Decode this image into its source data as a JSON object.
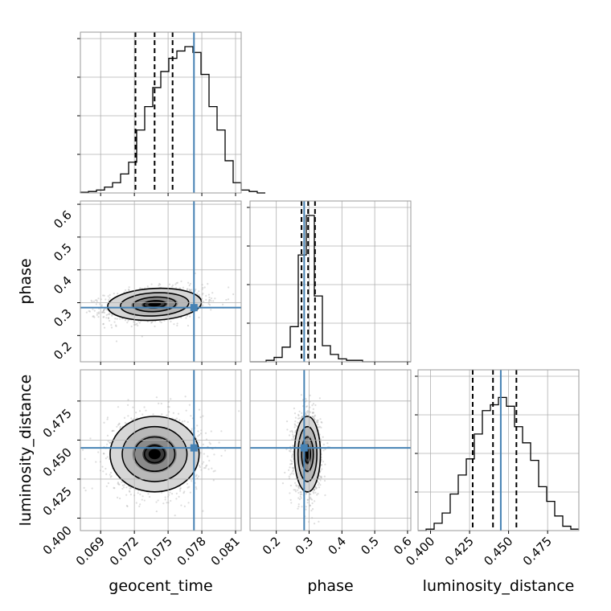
{
  "chart_data": {
    "type": "corner",
    "parameters": [
      "geocent_time",
      "phase",
      "luminosity_distance"
    ],
    "axis_labels": {
      "geocent_time": "geocent_time",
      "phase": "phase",
      "luminosity_distance": "luminosity_distance"
    },
    "ranges": {
      "geocent_time": [
        0.0672,
        0.0815
      ],
      "phase": [
        0.12,
        0.61
      ],
      "luminosity_distance": [
        0.392,
        0.495
      ]
    },
    "ticks": {
      "geocent_time": [
        0.069,
        0.072,
        0.075,
        0.078,
        0.081
      ],
      "phase": [
        0.2,
        0.3,
        0.4,
        0.5,
        0.6
      ],
      "phase_y": [
        0.2,
        0.3,
        0.4,
        0.5,
        0.6
      ],
      "luminosity_distance": [
        0.4,
        0.425,
        0.45,
        0.475
      ]
    },
    "tick_labels": {
      "geocent_time": [
        "0.069",
        "0.072",
        "0.075",
        "0.078",
        "0.081"
      ],
      "phase": [
        "0.2",
        "0.3",
        "0.4",
        "0.5",
        "0.6"
      ],
      "phase_y": [
        "0.2",
        "0.3",
        "0.4",
        "0.5",
        "0.6"
      ],
      "luminosity_distance_x": [
        "0.400",
        "0.425",
        "0.450",
        "0.475"
      ],
      "luminosity_distance_y": [
        "0.400",
        "0.425",
        "0.450",
        "0.475"
      ]
    },
    "truths": {
      "geocent_time": 0.0773,
      "phase": 0.285,
      "luminosity_distance": 0.445
    },
    "quantiles": {
      "geocent_time": [
        0.0721,
        0.0738,
        0.0754
      ],
      "phase": [
        0.277,
        0.297,
        0.318
      ],
      "luminosity_distance": [
        0.427,
        0.44,
        0.455
      ]
    },
    "histograms": {
      "geocent_time": {
        "bin_start": 0.0672,
        "bin_width": 0.000715,
        "counts": [
          0.005,
          0.01,
          0.02,
          0.04,
          0.07,
          0.13,
          0.21,
          0.43,
          0.59,
          0.72,
          0.83,
          0.92,
          0.97,
          1.0,
          0.96,
          0.81,
          0.59,
          0.43,
          0.22,
          0.07,
          0.02,
          0.01,
          0.0
        ]
      },
      "phase": {
        "bin_start": 0.12,
        "bin_width": 0.0245,
        "counts": [
          0.0,
          0.0,
          0.01,
          0.03,
          0.1,
          0.24,
          0.73,
          1.0,
          0.45,
          0.11,
          0.05,
          0.02,
          0.01,
          0.01,
          0.0,
          0.0,
          0.0,
          0.0,
          0.0,
          0.0
        ]
      },
      "luminosity_distance": {
        "bin_start": 0.392,
        "bin_width": 0.00515,
        "counts": [
          0.0,
          0.01,
          0.05,
          0.12,
          0.25,
          0.38,
          0.49,
          0.66,
          0.82,
          0.86,
          0.91,
          0.85,
          0.71,
          0.6,
          0.48,
          0.3,
          0.2,
          0.1,
          0.03,
          0.01
        ]
      }
    },
    "posterior_2d": {
      "geocent_time_vs_phase": {
        "center": [
          0.0738,
          0.295
        ],
        "sigma": [
          0.0019,
          0.022
        ],
        "correlation": 0.25
      },
      "geocent_time_vs_luminosity_distance": {
        "center": [
          0.0738,
          0.441
        ],
        "sigma": [
          0.0018,
          0.011
        ],
        "correlation": 0.0
      },
      "phase_vs_luminosity_distance": {
        "center": [
          0.295,
          0.441
        ],
        "sigma": [
          0.018,
          0.011
        ],
        "correlation": 0.0
      }
    },
    "grid": true,
    "colors": {
      "truth": "#4682b4",
      "hist": "#000000",
      "samples": "#9e9e9e",
      "grid": "#b0b0b0"
    }
  }
}
